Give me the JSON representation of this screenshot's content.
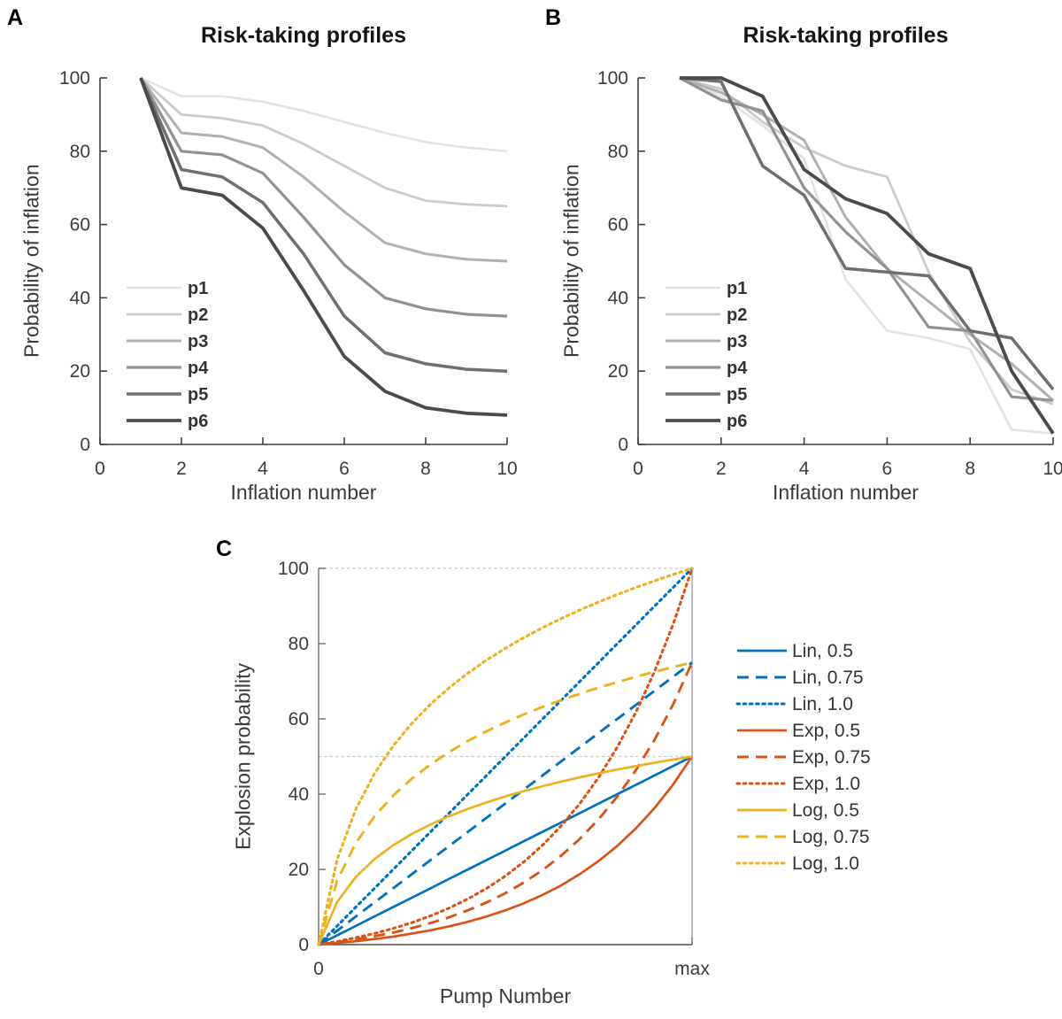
{
  "page": {
    "background": "#ffffff",
    "panel_a_letter": "A",
    "panel_b_letter": "B",
    "panel_c_letter": "C"
  },
  "panel_a": {
    "title": "Risk-taking profiles",
    "xlabel": "Inflation number",
    "ylabel": "Probability of inflation"
  },
  "panel_b": {
    "title": "Risk-taking profiles",
    "xlabel": "Inflation number",
    "ylabel": "Probability of inflation"
  },
  "panel_c": {
    "xlabel": "Pump Number",
    "ylabel": "Explosion probability"
  },
  "colors": {
    "blue": "#0072BD",
    "orange": "#D95319",
    "yellow": "#EDB120",
    "gray_p1": "#E2E2E2",
    "gray_p2": "#CBCBCB",
    "gray_p3": "#B0B0B0",
    "gray_p4": "#929292",
    "gray_p5": "#6F6F6F",
    "gray_p6": "#4B4B4B",
    "axis_dark": "#3f3f3f",
    "axis_gray": "#7a7a7a",
    "grid_gray": "#c4c4c4",
    "tick_text": "#3c3c3c"
  },
  "chart_data": [
    {
      "id": "panel_a",
      "type": "line",
      "title": "Risk-taking profiles",
      "xlabel": "Inflation number",
      "ylabel": "Probability of inflation",
      "xlim": [
        0,
        10
      ],
      "ylim": [
        0,
        100
      ],
      "xticks": [
        {
          "v": 0,
          "label": "0"
        },
        {
          "v": 2,
          "label": "2"
        },
        {
          "v": 4,
          "label": "4"
        },
        {
          "v": 6,
          "label": "6"
        },
        {
          "v": 8,
          "label": "8"
        },
        {
          "v": 10,
          "label": "10"
        }
      ],
      "yticks": [
        {
          "v": 0,
          "label": "0"
        },
        {
          "v": 20,
          "label": "20"
        },
        {
          "v": 40,
          "label": "40"
        },
        {
          "v": 60,
          "label": "60"
        },
        {
          "v": 80,
          "label": "80"
        },
        {
          "v": 100,
          "label": "100"
        }
      ],
      "grid": false,
      "legend_position": "inside-left",
      "x": [
        1,
        2,
        3,
        4,
        5,
        6,
        7,
        8,
        9,
        10
      ],
      "series": [
        {
          "name": "p1",
          "color": "#E2E2E2",
          "style": "solid",
          "width": 2.6,
          "values": [
            100,
            95,
            95,
            93.5,
            91,
            88,
            85,
            82.5,
            81,
            80
          ]
        },
        {
          "name": "p2",
          "color": "#CBCBCB",
          "style": "solid",
          "width": 2.8,
          "values": [
            100,
            90,
            89,
            87,
            82,
            76,
            70,
            66.5,
            65.5,
            65
          ]
        },
        {
          "name": "p3",
          "color": "#B0B0B0",
          "style": "solid",
          "width": 3.0,
          "values": [
            100,
            85,
            84,
            81,
            73,
            63.5,
            55,
            52,
            50.5,
            50
          ]
        },
        {
          "name": "p4",
          "color": "#929292",
          "style": "solid",
          "width": 3.2,
          "values": [
            100,
            80,
            79,
            74,
            62,
            49,
            40,
            37,
            35.5,
            35
          ]
        },
        {
          "name": "p5",
          "color": "#6F6F6F",
          "style": "solid",
          "width": 3.5,
          "values": [
            100,
            75,
            73,
            66,
            52,
            35,
            25,
            22,
            20.5,
            20
          ]
        },
        {
          "name": "p6",
          "color": "#4B4B4B",
          "style": "solid",
          "width": 3.8,
          "values": [
            100,
            70,
            68,
            59,
            42,
            24,
            14.5,
            10,
            8.5,
            8
          ]
        }
      ]
    },
    {
      "id": "panel_b",
      "type": "line",
      "title": "Risk-taking profiles",
      "xlabel": "Inflation number",
      "ylabel": "Probability of inflation",
      "xlim": [
        0,
        10
      ],
      "ylim": [
        0,
        100
      ],
      "xticks": [
        {
          "v": 0,
          "label": "0"
        },
        {
          "v": 2,
          "label": "2"
        },
        {
          "v": 4,
          "label": "4"
        },
        {
          "v": 6,
          "label": "6"
        },
        {
          "v": 8,
          "label": "8"
        },
        {
          "v": 10,
          "label": "10"
        }
      ],
      "yticks": [
        {
          "v": 0,
          "label": "0"
        },
        {
          "v": 20,
          "label": "20"
        },
        {
          "v": 40,
          "label": "40"
        },
        {
          "v": 60,
          "label": "60"
        },
        {
          "v": 80,
          "label": "80"
        },
        {
          "v": 100,
          "label": "100"
        }
      ],
      "grid": false,
      "legend_position": "inside-left",
      "x": [
        1,
        2,
        3,
        4,
        5,
        6,
        7,
        8,
        9,
        10
      ],
      "series": [
        {
          "name": "p1",
          "color": "#E2E2E2",
          "style": "solid",
          "width": 2.6,
          "values": [
            100,
            95,
            87,
            78,
            45,
            31,
            29,
            26,
            4,
            3
          ]
        },
        {
          "name": "p2",
          "color": "#CBCBCB",
          "style": "solid",
          "width": 2.8,
          "values": [
            100,
            97,
            88,
            81,
            76,
            73,
            47,
            28,
            15,
            11
          ]
        },
        {
          "name": "p3",
          "color": "#B0B0B0",
          "style": "solid",
          "width": 3.0,
          "values": [
            100,
            96,
            90,
            83,
            62,
            48,
            39,
            30,
            22,
            12
          ]
        },
        {
          "name": "p4",
          "color": "#929292",
          "style": "solid",
          "width": 3.2,
          "values": [
            100,
            94,
            91,
            70,
            58,
            48,
            32,
            31,
            13,
            12
          ]
        },
        {
          "name": "p5",
          "color": "#6F6F6F",
          "style": "solid",
          "width": 3.5,
          "values": [
            100,
            99,
            76,
            68,
            48,
            47,
            46,
            31,
            29,
            15
          ]
        },
        {
          "name": "p6",
          "color": "#4B4B4B",
          "style": "solid",
          "width": 3.8,
          "values": [
            100,
            100,
            95,
            75,
            67,
            63,
            52,
            48,
            20,
            3
          ]
        }
      ]
    },
    {
      "id": "panel_c",
      "type": "line",
      "title": "",
      "xlabel": "Pump Number",
      "ylabel": "Explosion probability",
      "xlim": [
        0,
        1
      ],
      "ylim": [
        0,
        100
      ],
      "xticks": [
        {
          "v": 0,
          "label": "0"
        },
        {
          "v": 1,
          "label": "max"
        }
      ],
      "yticks": [
        {
          "v": 0,
          "label": "0"
        },
        {
          "v": 20,
          "label": "20"
        },
        {
          "v": 40,
          "label": "40"
        },
        {
          "v": 60,
          "label": "60"
        },
        {
          "v": 80,
          "label": "80"
        },
        {
          "v": 100,
          "label": "100"
        }
      ],
      "grid": true,
      "gridlines_y": [
        50,
        100
      ],
      "box": true,
      "legend_position": "outside-right",
      "x": [
        0,
        0.05,
        0.1,
        0.15,
        0.2,
        0.25,
        0.3,
        0.35,
        0.4,
        0.45,
        0.5,
        0.55,
        0.6,
        0.65,
        0.7,
        0.75,
        0.8,
        0.85,
        0.9,
        0.95,
        1
      ],
      "series": [
        {
          "name": "Lin, 0.5",
          "color": "#0072BD",
          "style": "solid",
          "width": 2.7,
          "values": [
            0,
            2.5,
            5,
            7.5,
            10,
            12.5,
            15,
            17.5,
            20,
            22.5,
            25,
            27.5,
            30,
            32.5,
            35,
            37.5,
            40,
            42.5,
            45,
            47.5,
            50
          ]
        },
        {
          "name": "Lin, 0.75",
          "color": "#0072BD",
          "style": "dashed",
          "width": 2.9,
          "values": [
            0,
            3.75,
            7.5,
            11.25,
            15,
            18.75,
            22.5,
            26.25,
            30,
            33.75,
            37.5,
            41.25,
            45,
            48.75,
            52.5,
            56.25,
            60,
            63.75,
            67.5,
            71.25,
            75
          ]
        },
        {
          "name": "Lin, 1.0",
          "color": "#0072BD",
          "style": "dotted",
          "width": 3.1,
          "values": [
            0,
            5,
            10,
            15,
            20,
            25,
            30,
            35,
            40,
            45,
            50,
            55,
            60,
            65,
            70,
            75,
            80,
            85,
            90,
            95,
            100
          ]
        },
        {
          "name": "Exp, 0.5",
          "color": "#D95319",
          "style": "solid",
          "width": 2.7,
          "values": [
            0,
            0.42,
            0.92,
            1.49,
            2.15,
            2.93,
            3.82,
            4.87,
            6.08,
            7.49,
            9.12,
            11.02,
            13.23,
            15.79,
            18.77,
            22.24,
            26.26,
            30.93,
            36.36,
            42.67,
            50
          ]
        },
        {
          "name": "Exp, 0.75",
          "color": "#D95319",
          "style": "dashed",
          "width": 2.9,
          "values": [
            0,
            0.64,
            1.37,
            2.23,
            3.23,
            4.39,
            5.74,
            7.3,
            9.12,
            11.23,
            13.68,
            16.53,
            19.84,
            23.69,
            28.16,
            33.35,
            39.39,
            46.4,
            54.54,
            64.01,
            75
          ]
        },
        {
          "name": "Exp, 1.0",
          "color": "#D95319",
          "style": "dotted",
          "width": 3.1,
          "values": [
            0,
            0.85,
            1.83,
            2.98,
            4.31,
            5.85,
            7.65,
            9.73,
            12.16,
            14.97,
            18.24,
            22.04,
            26.46,
            31.59,
            37.55,
            44.47,
            52.52,
            61.86,
            72.72,
            85.34,
            100
          ]
        },
        {
          "name": "Log, 0.5",
          "color": "#EDB120",
          "style": "solid",
          "width": 2.7,
          "values": [
            0,
            11.38,
            18.04,
            22.77,
            26.43,
            29.43,
            31.96,
            34.15,
            36.09,
            37.82,
            39.38,
            40.81,
            42.12,
            43.34,
            44.48,
            45.53,
            46.53,
            47.47,
            48.36,
            49.2,
            50
          ]
        },
        {
          "name": "Log, 0.75",
          "color": "#EDB120",
          "style": "dashed",
          "width": 2.9,
          "values": [
            0,
            17.08,
            27.06,
            34.15,
            39.65,
            44.14,
            47.94,
            51.23,
            54.13,
            56.72,
            59.07,
            61.21,
            63.19,
            65.02,
            66.72,
            68.3,
            69.8,
            71.2,
            72.53,
            73.8,
            75
          ]
        },
        {
          "name": "Log, 1.0",
          "color": "#EDB120",
          "style": "dotted",
          "width": 3.1,
          "values": [
            0,
            22.77,
            36.09,
            45.53,
            52.86,
            58.85,
            63.92,
            68.3,
            72.17,
            75.63,
            78.76,
            81.62,
            84.25,
            86.68,
            88.95,
            91.07,
            93.06,
            94.94,
            96.71,
            98.4,
            100
          ]
        }
      ]
    }
  ]
}
